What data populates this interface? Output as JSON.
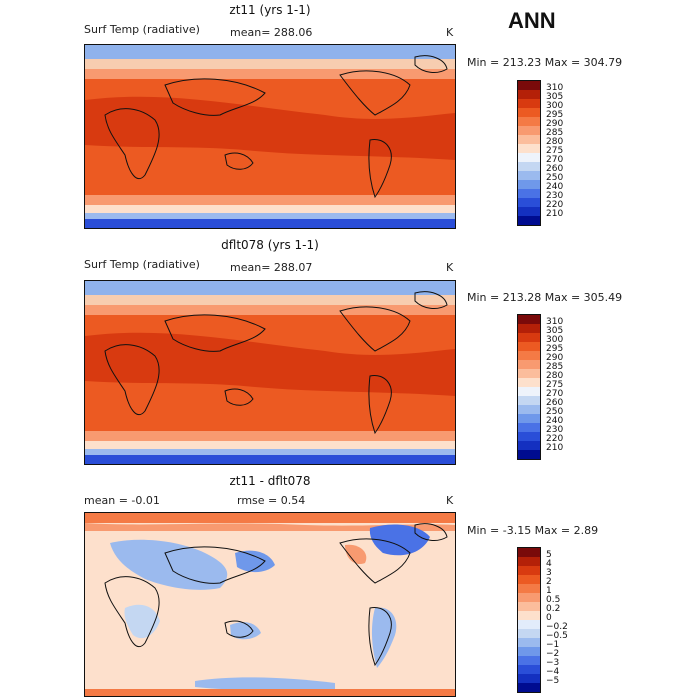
{
  "season": "ANN",
  "panels": [
    {
      "title": "zt11 (yrs 1-1)",
      "left_label": "Surf Temp (radiative)",
      "mid_label": "mean= 288.06",
      "units": "K",
      "minmax": "Min = 213.23 Max = 304.79",
      "colorbar_labels": [
        "310",
        "305",
        "300",
        "295",
        "290",
        "285",
        "280",
        "275",
        "270",
        "260",
        "250",
        "240",
        "230",
        "220",
        "210"
      ]
    },
    {
      "title": "dflt078 (yrs 1-1)",
      "left_label": "Surf Temp (radiative)",
      "mid_label": "mean= 288.07",
      "units": "K",
      "minmax": "Min = 213.28 Max = 305.49",
      "colorbar_labels": [
        "310",
        "305",
        "300",
        "295",
        "290",
        "285",
        "280",
        "275",
        "270",
        "260",
        "250",
        "240",
        "230",
        "220",
        "210"
      ]
    },
    {
      "title": "zt11 - dflt078",
      "left_label": "mean =  -0.01",
      "mid_label": "rmse =   0.54",
      "units": "K",
      "minmax": "Min =  -3.15 Max =   2.89",
      "colorbar_labels": [
        "5",
        "4",
        "3",
        "2",
        "1",
        "0.5",
        "0.2",
        "0",
        "−0.2",
        "−0.5",
        "−1",
        "−2",
        "−3",
        "−4",
        "−5"
      ]
    }
  ],
  "colors": {
    "abs_scale": [
      "#7a0a0a",
      "#b42008",
      "#d83a10",
      "#ec5a22",
      "#f47a45",
      "#f89a70",
      "#fbbd9c",
      "#fde0cc",
      "#eef3fb",
      "#c4d7f2",
      "#9bbaee",
      "#6f98ea",
      "#4a72e6",
      "#2a4ed8",
      "#1430c0",
      "#000c90"
    ],
    "diff_scale": [
      "#7a0a0a",
      "#b42008",
      "#d83a10",
      "#ec5a22",
      "#f47a45",
      "#f89a70",
      "#fbbd9c",
      "#fde0cc",
      "#e2ecfb",
      "#c4d7f2",
      "#9bbaee",
      "#6f98ea",
      "#4a72e6",
      "#2a4ed8",
      "#1430c0",
      "#000c90"
    ]
  }
}
